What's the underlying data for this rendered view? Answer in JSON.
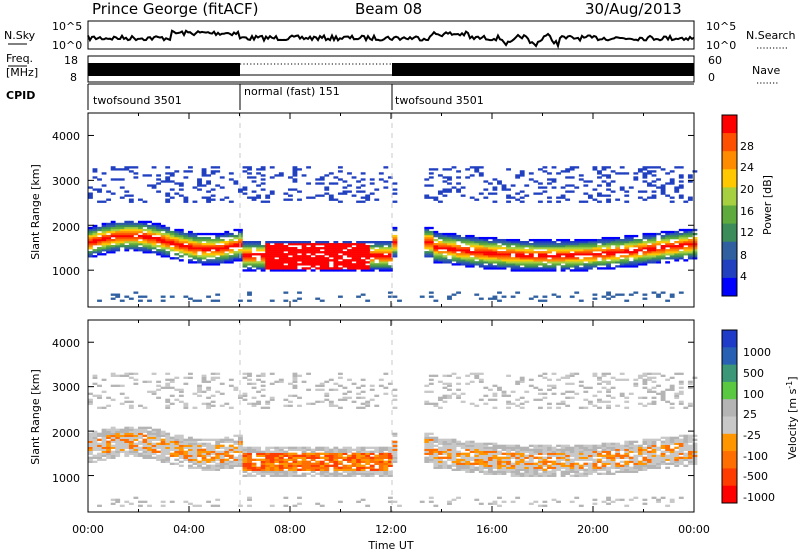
{
  "header": {
    "station": "Prince George (fitACF)",
    "beam": "Beam 08",
    "date": "30/Aug/2013"
  },
  "strips": {
    "nsky_label": "N.Sky",
    "nsky_ticks": [
      "10^5",
      "10^0"
    ],
    "nsearch_label": "N.Search",
    "freq_label": "Freq.",
    "freq_unit": "[MHz]",
    "freq_ticks": [
      "18",
      "8"
    ],
    "nave_label": "Nave",
    "nave_ticks": [
      "60",
      "0"
    ],
    "cpid_label": "CPID",
    "cpid_segments": [
      {
        "label": "twofsound 3501",
        "start_h": 0,
        "end_h": 6
      },
      {
        "label": "normal (fast) 151",
        "start_h": 6,
        "end_h": 12
      },
      {
        "label": "twofsound 3501",
        "start_h": 12,
        "end_h": 24
      }
    ]
  },
  "chart_data": [
    {
      "type": "heatmap",
      "title": "Power",
      "xlabel": "Time UT",
      "ylabel": "Slant Range [km]",
      "colorbar_label": "Power [dB]",
      "x_ticks": [
        "00:00",
        "04:00",
        "08:00",
        "12:00",
        "16:00",
        "20:00",
        "00:00"
      ],
      "y_ticks": [
        "1000",
        "2000",
        "3000",
        "4000"
      ],
      "xlim_hours": [
        0,
        24
      ],
      "ylim_km": [
        180,
        4500
      ],
      "colorbar_ticks": [
        "4",
        "8",
        "12",
        "16",
        "20",
        "24",
        "28"
      ],
      "colorbar_colors": [
        "#0000ff",
        "#2040c0",
        "#3060a0",
        "#3c8c5a",
        "#5faa3c",
        "#a6d040",
        "#ffc800",
        "#ff8c00",
        "#ff5000",
        "#ff0000"
      ],
      "mode_change_hours": [
        6,
        12
      ]
    },
    {
      "type": "heatmap",
      "title": "Velocity",
      "xlabel": "Time UT",
      "ylabel": "Slant Range [km]",
      "colorbar_label": "Velocity [m s",
      "colorbar_unit_sup": "-1",
      "x_ticks": [
        "00:00",
        "04:00",
        "08:00",
        "12:00",
        "16:00",
        "20:00",
        "00:00"
      ],
      "y_ticks": [
        "1000",
        "2000",
        "3000",
        "4000"
      ],
      "xlim_hours": [
        0,
        24
      ],
      "ylim_km": [
        180,
        4500
      ],
      "colorbar_ticks": [
        "1000",
        "500",
        "100",
        "25",
        "-25",
        "-100",
        "-500",
        "-1000"
      ],
      "colorbar_colors": [
        "#1e3cc8",
        "#2860b4",
        "#3c9678",
        "#5ac840",
        "#b4b4b4",
        "#c8c8c8",
        "#ff9600",
        "#ff6e00",
        "#ff3c00",
        "#ff0000"
      ],
      "mode_change_hours": [
        6,
        12
      ]
    }
  ]
}
